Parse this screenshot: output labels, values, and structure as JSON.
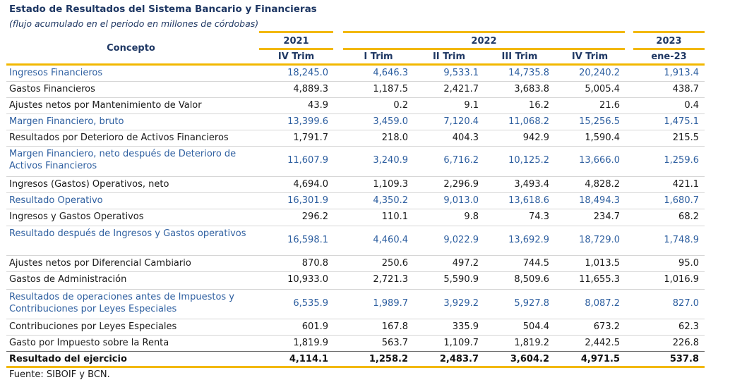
{
  "title": "Estado de Resultados del Sistema Bancario y Financieras",
  "subtitle": "(flujo acumulado en el periodo en millones de córdobas)",
  "header": {
    "concept": "Concepto",
    "years": [
      "2021",
      "2022",
      "2023"
    ],
    "periods": [
      "IV Trim",
      "I Trim",
      "II Trim",
      "III Trim",
      "IV Trim",
      "ene-23"
    ]
  },
  "rows": [
    {
      "label": "Ingresos Financieros",
      "values": [
        "18,245.0",
        "4,646.3",
        "9,533.1",
        "14,735.8",
        "20,240.2",
        "1,913.4"
      ],
      "style": "blue"
    },
    {
      "label": "Gastos Financieros",
      "values": [
        "4,889.3",
        "1,187.5",
        "2,421.7",
        "3,683.8",
        "5,005.4",
        "438.7"
      ],
      "style": "normal"
    },
    {
      "label": "Ajustes netos por Mantenimiento de Valor",
      "values": [
        "43.9",
        "0.2",
        "9.1",
        "16.2",
        "21.6",
        "0.4"
      ],
      "style": "normal"
    },
    {
      "label": "Margen Financiero, bruto",
      "values": [
        "13,399.6",
        "3,459.0",
        "7,120.4",
        "11,068.2",
        "15,256.5",
        "1,475.1"
      ],
      "style": "blue"
    },
    {
      "label": "Resultados por Deterioro de Activos Financieros",
      "values": [
        "1,791.7",
        "218.0",
        "404.3",
        "942.9",
        "1,590.4",
        "215.5"
      ],
      "style": "normal"
    },
    {
      "label": "Margen Financiero, neto después de Deterioro de Activos Financieros",
      "values": [
        "11,607.9",
        "3,240.9",
        "6,716.2",
        "10,125.2",
        "13,666.0",
        "1,259.6"
      ],
      "style": "blue"
    },
    {
      "label": "Ingresos (Gastos) Operativos, neto",
      "values": [
        "4,694.0",
        "1,109.3",
        "2,296.9",
        "3,493.4",
        "4,828.2",
        "421.1"
      ],
      "style": "normal"
    },
    {
      "label": "Resultado Operativo",
      "values": [
        "16,301.9",
        "4,350.2",
        "9,013.0",
        "13,618.6",
        "18,494.3",
        "1,680.7"
      ],
      "style": "blue"
    },
    {
      "label": "Ingresos y Gastos Operativos",
      "values": [
        "296.2",
        "110.1",
        "9.8",
        "74.3",
        "234.7",
        "68.2"
      ],
      "style": "normal"
    },
    {
      "label": "Resultado después de Ingresos y Gastos operativos",
      "values": [
        "16,598.1",
        "4,460.4",
        "9,022.9",
        "13,692.9",
        "18,729.0",
        "1,748.9"
      ],
      "style": "blue"
    },
    {
      "label": "Ajustes netos por Diferencial Cambiario",
      "values": [
        "870.8",
        "250.6",
        "497.2",
        "744.5",
        "1,013.5",
        "95.0"
      ],
      "style": "normal"
    },
    {
      "label": "Gastos de Administración",
      "values": [
        "10,933.0",
        "2,721.3",
        "5,590.9",
        "8,509.6",
        "11,655.3",
        "1,016.9"
      ],
      "style": "normal"
    },
    {
      "label": "Resultados de operaciones antes de Impuestos y Contribuciones por Leyes Especiales",
      "values": [
        "6,535.9",
        "1,989.7",
        "3,929.2",
        "5,927.8",
        "8,087.2",
        "827.0"
      ],
      "style": "blue"
    },
    {
      "label": "Contribuciones por Leyes Especiales",
      "values": [
        "601.9",
        "167.8",
        "335.9",
        "504.4",
        "673.2",
        "62.3"
      ],
      "style": "normal"
    },
    {
      "label": "Gasto por Impuesto sobre la Renta",
      "values": [
        "1,819.9",
        "563.7",
        "1,109.7",
        "1,819.2",
        "2,442.5",
        "226.8"
      ],
      "style": "normal"
    },
    {
      "label": "Resultado del ejercicio",
      "values": [
        "4,114.1",
        "1,258.2",
        "2,483.7",
        "3,604.2",
        "4,971.5",
        "537.8"
      ],
      "style": "bold"
    }
  ],
  "footer": "Fuente: SIBOIF y BCN."
}
